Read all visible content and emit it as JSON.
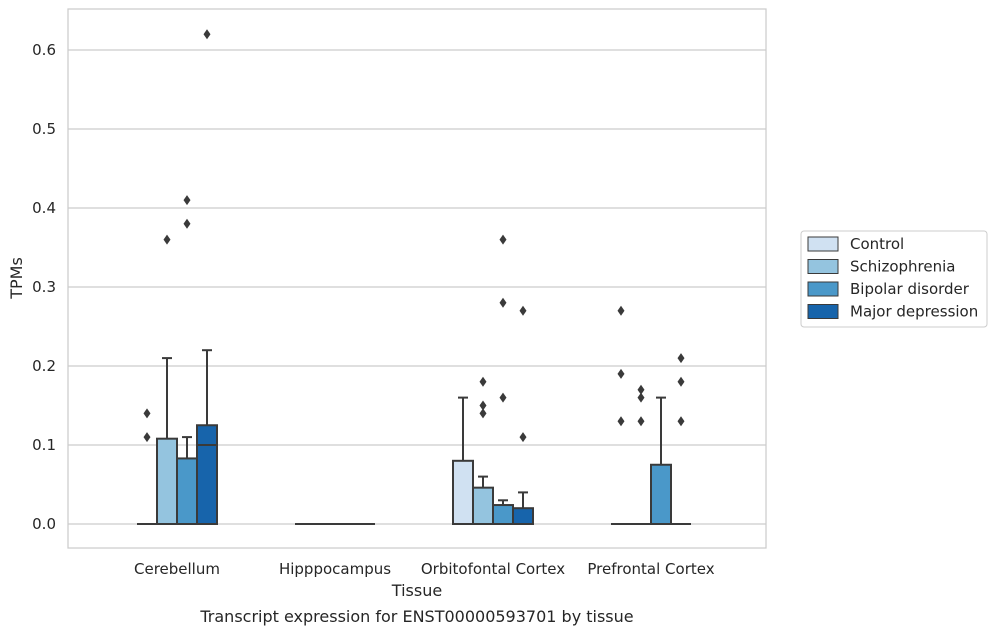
{
  "chart_data": {
    "type": "box",
    "title": "",
    "caption": "Transcript expression for ENST00000593701 by tissue",
    "xlabel": "Tissue",
    "ylabel": "TPMs",
    "ylim": [
      -0.03,
      0.655
    ],
    "yticks": [
      0.0,
      0.1,
      0.2,
      0.3,
      0.4,
      0.5,
      0.6
    ],
    "ytick_labels": [
      "0.0",
      "0.1",
      "0.2",
      "0.3",
      "0.4",
      "0.5",
      "0.6"
    ],
    "grid": "horizontal",
    "legend_position": "right",
    "categories": [
      "Cerebellum",
      "Hipppocampus",
      "Orbitofontal Cortex",
      "Prefrontal Cortex"
    ],
    "series": [
      {
        "name": "Control",
        "color": "#d0e1f2",
        "boxes": [
          {
            "q1": 0.0,
            "median": 0.0,
            "q3": 0.0,
            "whisker_low": 0.0,
            "whisker_high": 0.0,
            "outliers": [
              0.11,
              0.14
            ]
          },
          {
            "q1": 0.0,
            "median": 0.0,
            "q3": 0.0,
            "whisker_low": 0.0,
            "whisker_high": 0.0,
            "outliers": []
          },
          {
            "q1": 0.0,
            "median": 0.0,
            "q3": 0.08,
            "whisker_low": 0.0,
            "whisker_high": 0.16,
            "outliers": []
          },
          {
            "q1": 0.0,
            "median": 0.0,
            "q3": 0.0,
            "whisker_low": 0.0,
            "whisker_high": 0.0,
            "outliers": [
              0.13,
              0.19,
              0.27
            ]
          }
        ]
      },
      {
        "name": "Schizophrenia",
        "color": "#94c4df",
        "boxes": [
          {
            "q1": 0.0,
            "median": 0.0,
            "q3": 0.108,
            "whisker_low": 0.0,
            "whisker_high": 0.21,
            "outliers": [
              0.36
            ]
          },
          {
            "q1": 0.0,
            "median": 0.0,
            "q3": 0.0,
            "whisker_low": 0.0,
            "whisker_high": 0.0,
            "outliers": []
          },
          {
            "q1": 0.0,
            "median": 0.0,
            "q3": 0.046,
            "whisker_low": 0.0,
            "whisker_high": 0.06,
            "outliers": [
              0.14,
              0.15,
              0.18
            ]
          },
          {
            "q1": 0.0,
            "median": 0.0,
            "q3": 0.0,
            "whisker_low": 0.0,
            "whisker_high": 0.0,
            "outliers": [
              0.13,
              0.16,
              0.17
            ]
          }
        ]
      },
      {
        "name": "Bipolar disorder",
        "color": "#4a98c9",
        "boxes": [
          {
            "q1": 0.0,
            "median": 0.0,
            "q3": 0.083,
            "whisker_low": 0.0,
            "whisker_high": 0.11,
            "outliers": [
              0.38,
              0.41
            ]
          },
          {
            "q1": 0.0,
            "median": 0.0,
            "q3": 0.0,
            "whisker_low": 0.0,
            "whisker_high": 0.0,
            "outliers": []
          },
          {
            "q1": 0.0,
            "median": 0.0,
            "q3": 0.024,
            "whisker_low": 0.0,
            "whisker_high": 0.03,
            "outliers": [
              0.16,
              0.28,
              0.36
            ]
          },
          {
            "q1": 0.0,
            "median": 0.0,
            "q3": 0.075,
            "whisker_low": 0.0,
            "whisker_high": 0.16,
            "outliers": []
          }
        ]
      },
      {
        "name": "Major depression",
        "color": "#1764ab",
        "boxes": [
          {
            "q1": 0.0,
            "median": 0.1,
            "q3": 0.125,
            "whisker_low": 0.0,
            "whisker_high": 0.22,
            "outliers": [
              0.62
            ]
          },
          {
            "q1": 0.0,
            "median": 0.0,
            "q3": 0.0,
            "whisker_low": 0.0,
            "whisker_high": 0.0,
            "outliers": []
          },
          {
            "q1": 0.0,
            "median": 0.0,
            "q3": 0.02,
            "whisker_low": 0.0,
            "whisker_high": 0.04,
            "outliers": [
              0.11,
              0.27
            ]
          },
          {
            "q1": 0.0,
            "median": 0.0,
            "q3": 0.0,
            "whisker_low": 0.0,
            "whisker_high": 0.0,
            "outliers": [
              0.13,
              0.18,
              0.21
            ]
          }
        ]
      }
    ]
  }
}
